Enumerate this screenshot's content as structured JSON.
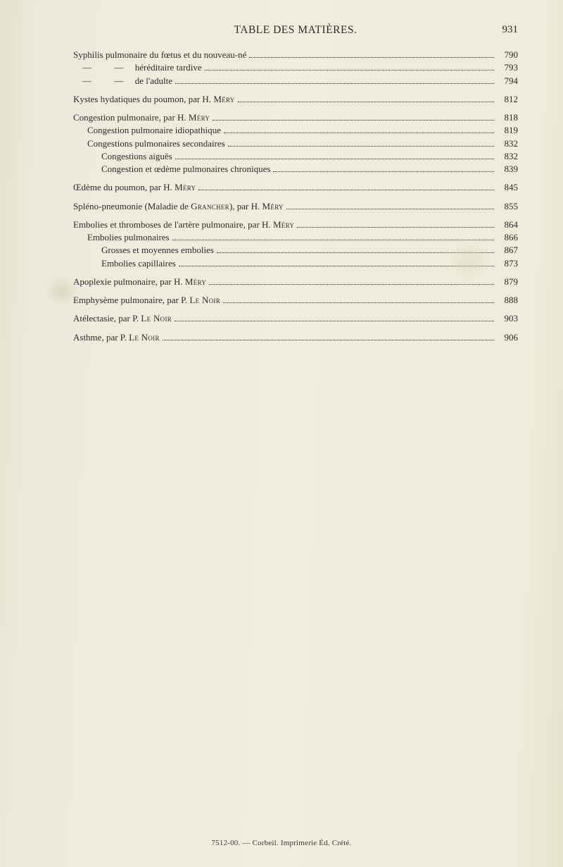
{
  "header": {
    "title": "TABLE DES MATIÈRES.",
    "page_number": "931"
  },
  "colors": {
    "background": "#ebe8d6",
    "text": "#2c2c2c",
    "leader": "#2c2c2c"
  },
  "typography": {
    "body_font": "Georgia / Times-like serif",
    "body_size_pt": 10,
    "header_size_pt": 12
  },
  "groups": [
    {
      "spacing": "first",
      "entries": [
        {
          "indent": 0,
          "label_html": "Syphilis pulmonaire du fœtus et du nouveau-né",
          "page": "790"
        },
        {
          "indent": 0,
          "label_html": "&nbsp;&nbsp;&nbsp;&nbsp;—&nbsp;&nbsp;&nbsp;&nbsp;&nbsp;&nbsp;&nbsp;&nbsp;&nbsp;&nbsp;—&nbsp;&nbsp;&nbsp;&nbsp;&nbsp;héréditaire tardive",
          "page": "793"
        },
        {
          "indent": 0,
          "label_html": "&nbsp;&nbsp;&nbsp;&nbsp;—&nbsp;&nbsp;&nbsp;&nbsp;&nbsp;&nbsp;&nbsp;&nbsp;&nbsp;&nbsp;—&nbsp;&nbsp;&nbsp;&nbsp;&nbsp;de l'adulte",
          "page": "794"
        }
      ]
    },
    {
      "entries": [
        {
          "indent": 0,
          "label_html": "Kystes hydatiques du poumon, par H. <span class=\"sc\">Méry</span>",
          "page": "812"
        }
      ]
    },
    {
      "entries": [
        {
          "indent": 0,
          "label_html": "Congestion pulmonaire, par H. <span class=\"sc\">Méry</span>",
          "page": "818"
        },
        {
          "indent": 1,
          "label_html": "Congestion pulmonaire idiopathique",
          "page": "819"
        },
        {
          "indent": 1,
          "label_html": "Congestions pulmonaires secondaires",
          "page": "832"
        },
        {
          "indent": 2,
          "label_html": "Congestions aiguës",
          "page": "832"
        },
        {
          "indent": 2,
          "label_html": "Congestion et œdème pulmonaires chroniques",
          "page": "839"
        }
      ]
    },
    {
      "entries": [
        {
          "indent": 0,
          "label_html": "Œdème du poumon, par H. <span class=\"sc\">Méry</span>",
          "page": "845"
        }
      ]
    },
    {
      "entries": [
        {
          "indent": 0,
          "label_html": "Spléno-pneumonie (Maladie de <span class=\"sc\">Grancher</span>), par H. <span class=\"sc\">Méry</span>",
          "page": "855"
        }
      ]
    },
    {
      "entries": [
        {
          "indent": 0,
          "label_html": "Embolies et thromboses de l'artère pulmonaire, par H. <span class=\"sc\">Méry</span>",
          "page": "864"
        },
        {
          "indent": 1,
          "label_html": "Embolies pulmonaires",
          "page": "866"
        },
        {
          "indent": 2,
          "label_html": "Grosses et moyennes embolies",
          "page": "867"
        },
        {
          "indent": 2,
          "label_html": "Embolies capillaires",
          "page": "873"
        }
      ]
    },
    {
      "entries": [
        {
          "indent": 0,
          "label_html": "Apoplexie pulmonaire, par H. <span class=\"sc\">Méry</span>",
          "page": "879"
        }
      ]
    },
    {
      "entries": [
        {
          "indent": 0,
          "label_html": "Emphysème pulmonaire, par P. <span class=\"sc\">Le Noir</span>",
          "page": "888"
        }
      ]
    },
    {
      "entries": [
        {
          "indent": 0,
          "label_html": "Atélectasie, par P. <span class=\"sc\">Le Noir</span>",
          "page": "903"
        }
      ]
    },
    {
      "entries": [
        {
          "indent": 0,
          "label_html": "Asthme, par P. <span class=\"sc\">Le Noir</span>",
          "page": "906"
        }
      ]
    }
  ],
  "footer": "7512-00. — Corbeil. Imprimerie Éd. Crété."
}
